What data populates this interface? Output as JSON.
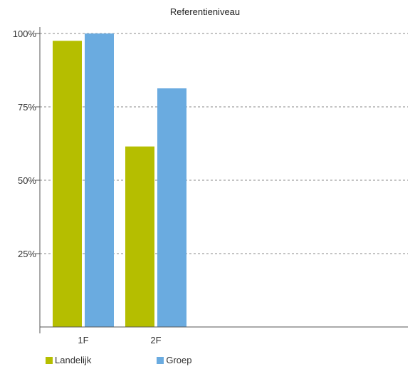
{
  "chart_data": {
    "type": "bar",
    "title": "Referentieniveau",
    "categories": [
      "1F",
      "2F"
    ],
    "series": [
      {
        "name": "Landelijk",
        "color": "#b5be00",
        "values": [
          97.5,
          61.5
        ]
      },
      {
        "name": "Groep",
        "color": "#6aabe0",
        "values": [
          100,
          81.3
        ]
      }
    ],
    "ylim": [
      0,
      100
    ],
    "yticks": [
      25,
      50,
      75,
      100
    ],
    "ytick_labels": [
      "25%",
      "50%",
      "75%",
      "100%"
    ],
    "xlabel": "",
    "ylabel": "",
    "grid": "horizontal-dashed",
    "legend_position": "bottom-left"
  }
}
